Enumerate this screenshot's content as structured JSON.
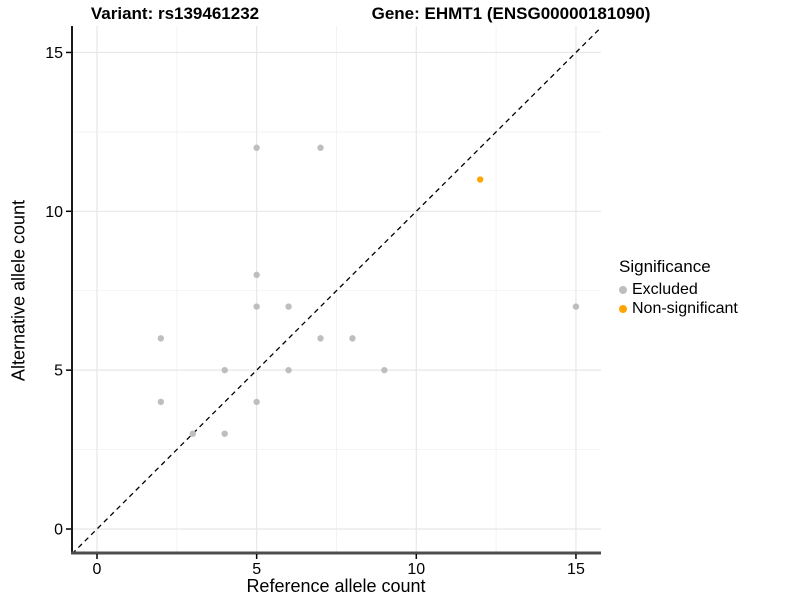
{
  "titles": {
    "left": "Variant: rs139461232",
    "right": "Gene: EHMT1 (ENSG00000181090)"
  },
  "chart_data": {
    "type": "scatter",
    "xlabel": "Reference allele count",
    "ylabel": "Alternative allele count",
    "xlim": [
      -0.78,
      15.78
    ],
    "ylim": [
      -0.78,
      15.78
    ],
    "major_ticks": [
      0,
      5,
      10,
      15
    ],
    "minor_ticks": [
      2.5,
      7.5,
      12.5
    ],
    "tick_labels": [
      "0",
      "5",
      "10",
      "15"
    ],
    "grid": true,
    "identity_line": {
      "type": "y=x",
      "style": "dashed",
      "color": "#000000"
    },
    "series": [
      {
        "name": "Excluded",
        "color": "#bebebe",
        "points": [
          [
            2,
            4
          ],
          [
            2,
            6
          ],
          [
            3,
            3
          ],
          [
            4,
            3
          ],
          [
            4,
            5
          ],
          [
            5,
            4
          ],
          [
            5,
            7
          ],
          [
            5,
            8
          ],
          [
            5,
            12
          ],
          [
            6,
            5
          ],
          [
            6,
            7
          ],
          [
            7,
            6
          ],
          [
            7,
            12
          ],
          [
            8,
            6
          ],
          [
            9,
            5
          ],
          [
            15,
            7
          ]
        ]
      },
      {
        "name": "Non-significant",
        "color": "#ffa500",
        "points": [
          [
            12,
            11
          ]
        ]
      }
    ]
  },
  "legend": {
    "title": "Significance",
    "position": "right",
    "items": [
      {
        "label": "Excluded",
        "color": "#bebebe"
      },
      {
        "label": "Non-significant",
        "color": "#ffa500"
      }
    ]
  },
  "colors": {
    "grid_major": "#e7e7e7",
    "grid_minor": "#f2f2f2",
    "axis_left": "#1a1a1a",
    "axis_bottom": "#4d4d4d",
    "tick": "#000000",
    "text": "#000000"
  }
}
